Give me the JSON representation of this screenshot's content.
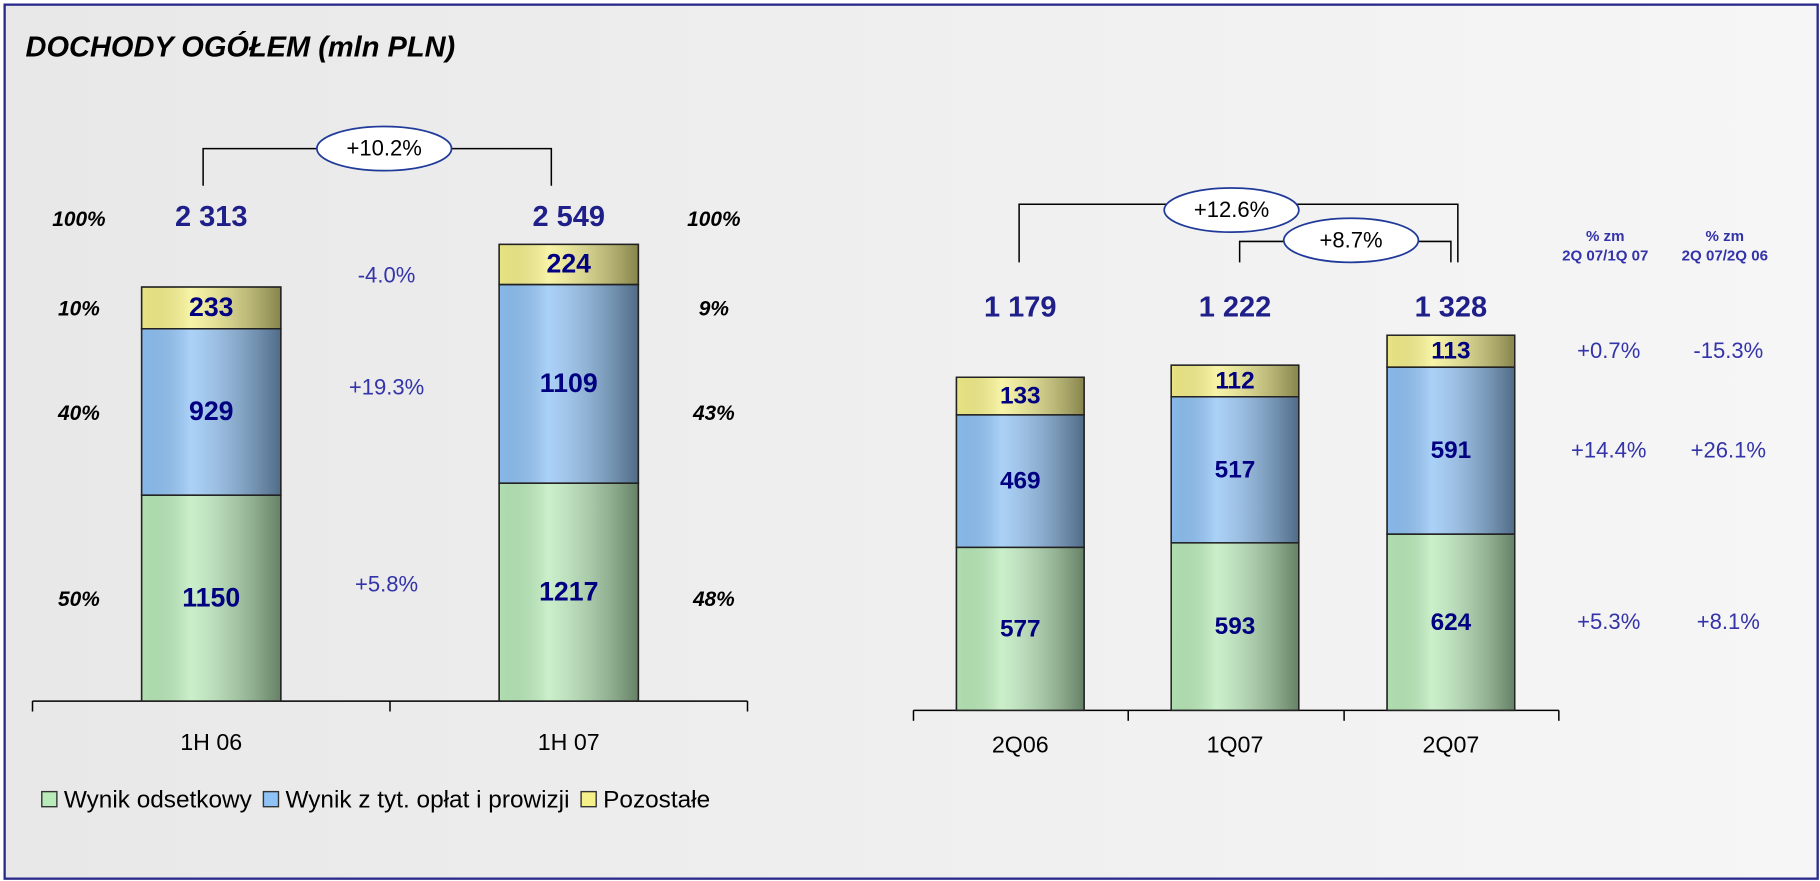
{
  "title": "DOCHODY OGÓŁEM (mln PLN)",
  "chart_data": [
    {
      "type": "bar",
      "stacked": true,
      "categories": [
        "1H 06",
        "1H 07"
      ],
      "series": [
        {
          "name": "Wynik odsetkowy",
          "color": "#b9eab9",
          "values": [
            1150,
            1217
          ]
        },
        {
          "name": "Wynik z tyt. opłat i prowizji",
          "color": "#8fc2f5",
          "values": [
            929,
            1109
          ]
        },
        {
          "name": "Pozostałe",
          "color": "#f5f08a",
          "values": [
            233,
            224
          ]
        }
      ],
      "totals": [
        2313,
        2549
      ],
      "total_labels": [
        "2 313",
        "2 549"
      ],
      "shares": [
        [
          50,
          40,
          10,
          100
        ],
        [
          48,
          43,
          9,
          100
        ]
      ],
      "share_labels": [
        [
          "50%",
          "40%",
          "10%",
          "100%"
        ],
        [
          "48%",
          "43%",
          "9%",
          "100%"
        ]
      ],
      "changes": [
        5.8,
        19.3,
        -4.0
      ],
      "change_labels": [
        "+5.8%",
        "+19.3%",
        "-4.0%"
      ],
      "total_change": {
        "value": 10.2,
        "label": "+10.2%"
      }
    },
    {
      "type": "bar",
      "stacked": true,
      "categories": [
        "2Q06",
        "1Q07",
        "2Q07"
      ],
      "series": [
        {
          "name": "Wynik odsetkowy",
          "color": "#b9eab9",
          "values": [
            577,
            593,
            624
          ]
        },
        {
          "name": "Wynik z tyt. opłat i prowizji",
          "color": "#8fc2f5",
          "values": [
            469,
            517,
            591
          ]
        },
        {
          "name": "Pozostałe",
          "color": "#f5f08a",
          "values": [
            133,
            112,
            113
          ]
        }
      ],
      "totals": [
        1179,
        1222,
        1328
      ],
      "total_labels": [
        "1 179",
        "1 222",
        "1 328"
      ],
      "brackets": [
        {
          "value": 12.6,
          "label": "+12.6%"
        },
        {
          "value": 8.7,
          "label": "+8.7%"
        }
      ],
      "change_columns": [
        {
          "header": [
            "% zm",
            "2Q 07/1Q 07"
          ],
          "values": [
            5.3,
            14.4,
            0.7
          ],
          "value_labels": [
            "+5.3%",
            "+14.4%",
            "+0.7%"
          ]
        },
        {
          "header": [
            "% zm",
            "2Q 07/2Q 06"
          ],
          "values": [
            8.1,
            26.1,
            -15.3
          ],
          "value_labels": [
            "+8.1%",
            "+26.1%",
            "-15.3%"
          ]
        }
      ]
    }
  ]
}
